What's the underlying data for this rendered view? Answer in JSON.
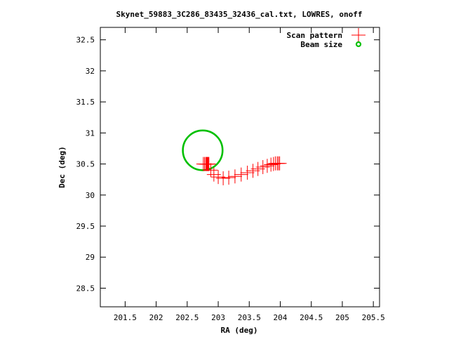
{
  "chart_data": {
    "type": "scatter",
    "title": "Skynet_59883_3C286_83435_32436_cal.txt, LOWRES, onoff",
    "xlabel": "RA (deg)",
    "ylabel": "Dec (deg)",
    "xlim": [
      201.1,
      205.6
    ],
    "ylim": [
      28.2,
      32.7
    ],
    "xticks": [
      201.5,
      202,
      202.5,
      203,
      203.5,
      204,
      204.5,
      205,
      205.5
    ],
    "yticks": [
      28.5,
      29,
      29.5,
      30,
      30.5,
      31,
      31.5,
      32,
      32.5
    ],
    "xtick_labels": [
      "201.5",
      "202",
      "202.5",
      "203",
      "203.5",
      "204",
      "204.5",
      "205",
      "205.5"
    ],
    "ytick_labels": [
      "28.5",
      "29",
      "29.5",
      "30",
      "30.5",
      "31",
      "31.5",
      "32",
      "32.5"
    ],
    "grid": false,
    "legend": "top-right",
    "series": [
      {
        "name": "Scan pattern",
        "marker": "plus",
        "color": "#ff0000",
        "x": [
          202.76,
          202.78,
          202.8,
          202.81,
          202.82,
          202.83,
          202.84,
          202.85,
          202.88,
          202.93,
          203.0,
          203.08,
          203.17,
          203.27,
          203.37,
          203.47,
          203.56,
          203.64,
          203.72,
          203.79,
          203.85,
          203.89,
          203.92,
          203.95,
          203.97,
          203.99
        ],
        "y": [
          30.5,
          30.5,
          30.5,
          30.5,
          30.5,
          30.5,
          30.5,
          30.5,
          30.4,
          30.33,
          30.29,
          30.27,
          30.28,
          30.3,
          30.33,
          30.36,
          30.39,
          30.42,
          30.45,
          30.47,
          30.49,
          30.5,
          30.51,
          30.51,
          30.51,
          30.51
        ]
      },
      {
        "name": "Beam size",
        "marker": "open-circle-ring",
        "color": "#00c000",
        "center": [
          202.75,
          30.72
        ],
        "radius_deg": 0.32
      }
    ]
  }
}
